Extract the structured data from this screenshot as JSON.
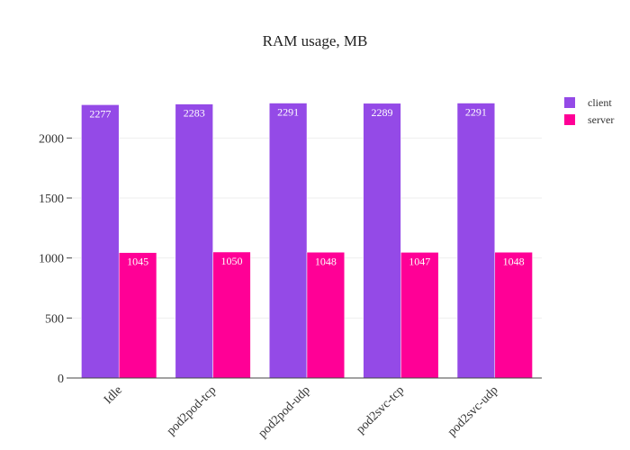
{
  "chart_data": {
    "type": "bar",
    "title": "RAM usage, MB",
    "categories": [
      "Idle",
      "pod2pod-tcp",
      "pod2pod-udp",
      "pod2svc-tcp",
      "pod2svc-udp"
    ],
    "series": [
      {
        "name": "client",
        "color": "#944ae7",
        "values": [
          2277,
          2283,
          2291,
          2289,
          2291
        ]
      },
      {
        "name": "server",
        "color": "#ff0096",
        "values": [
          1045,
          1050,
          1048,
          1047,
          1048
        ]
      }
    ],
    "ylim": [
      0,
      2400
    ],
    "yticks": [
      0,
      500,
      1000,
      1500,
      2000
    ],
    "grid": true,
    "legend_position": "top-right"
  }
}
